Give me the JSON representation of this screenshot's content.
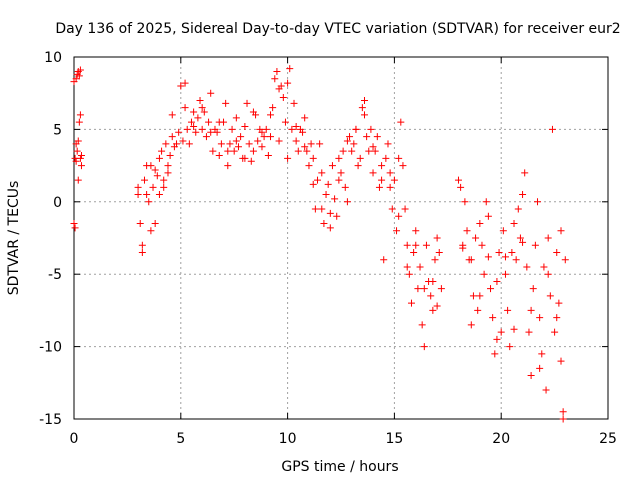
{
  "chart_data": {
    "type": "scatter",
    "title": "Day 136 of 2025, Sidereal Day-to-day VTEC variation (SDTVAR) for receiver eur2",
    "xlabel": "GPS time / hours",
    "ylabel": "SDTVAR / TECUs",
    "xlim": [
      0,
      25
    ],
    "ylim": [
      -15,
      10
    ],
    "x_ticks": [
      0,
      5,
      10,
      15,
      20,
      25
    ],
    "x_tick_labels": [
      "0",
      "5",
      "10",
      "15",
      "20",
      "25"
    ],
    "y_ticks": [
      -15,
      -10,
      -5,
      0,
      5,
      10
    ],
    "y_tick_labels": [
      "-15",
      "-10",
      "-5",
      "0",
      "5",
      "10"
    ],
    "grid": true,
    "marker": "plus",
    "marker_color": "#ff0000",
    "series": [
      {
        "name": "SDTVAR",
        "x": [
          0.0,
          0.05,
          0.1,
          0.15,
          0.2,
          0.25,
          0.3,
          0.05,
          0.1,
          0.15,
          0.2,
          0.25,
          0.3,
          0.35,
          0.0,
          0.1,
          0.2,
          0.3,
          0.35,
          3.0,
          3.1,
          3.2,
          3.3,
          3.4,
          3.5,
          3.6,
          3.7,
          3.8,
          3.9,
          4.0,
          4.1,
          4.2,
          4.3,
          4.4,
          4.5,
          4.6,
          4.7,
          4.8,
          4.9,
          5.0,
          5.1,
          5.2,
          5.3,
          5.4,
          5.5,
          5.6,
          5.7,
          5.8,
          5.9,
          6.0,
          6.1,
          6.2,
          6.3,
          6.4,
          6.5,
          6.6,
          6.7,
          6.8,
          6.9,
          7.0,
          7.1,
          7.2,
          7.3,
          7.4,
          7.5,
          7.6,
          7.7,
          7.8,
          7.9,
          8.0,
          8.1,
          8.2,
          8.3,
          8.4,
          8.5,
          8.6,
          8.7,
          8.8,
          8.9,
          9.0,
          9.1,
          9.2,
          9.3,
          9.4,
          9.5,
          9.6,
          9.7,
          9.8,
          9.9,
          10.0,
          10.1,
          10.2,
          10.3,
          10.4,
          10.5,
          10.6,
          10.7,
          10.8,
          10.9,
          11.0,
          11.1,
          11.2,
          11.3,
          11.4,
          11.5,
          11.6,
          11.7,
          11.8,
          11.9,
          12.0,
          12.1,
          12.2,
          12.3,
          12.4,
          12.5,
          12.6,
          12.7,
          12.8,
          12.9,
          13.0,
          13.1,
          13.2,
          13.3,
          13.4,
          13.5,
          13.6,
          13.7,
          13.8,
          13.9,
          14.0,
          14.1,
          14.2,
          14.3,
          14.4,
          14.5,
          14.6,
          14.7,
          14.8,
          14.9,
          15.0,
          15.1,
          15.2,
          15.3,
          15.4,
          15.5,
          15.6,
          15.7,
          15.8,
          15.9,
          16.0,
          16.1,
          16.2,
          16.3,
          16.4,
          16.5,
          16.6,
          16.7,
          16.8,
          16.9,
          17.0,
          17.1,
          17.2,
          18.0,
          18.1,
          18.2,
          18.3,
          18.4,
          18.5,
          18.6,
          18.7,
          18.8,
          18.9,
          19.0,
          19.1,
          19.2,
          19.3,
          19.4,
          19.5,
          19.6,
          19.7,
          19.8,
          19.9,
          20.0,
          20.1,
          20.2,
          20.3,
          20.4,
          20.5,
          20.6,
          20.7,
          20.8,
          20.9,
          21.0,
          21.1,
          21.2,
          21.3,
          21.4,
          21.5,
          21.6,
          21.7,
          21.8,
          21.9,
          22.0,
          22.1,
          22.2,
          22.3,
          22.4,
          22.5,
          22.6,
          22.7,
          22.8,
          22.9,
          23.0,
          3.0,
          3.2,
          3.4,
          3.6,
          3.8,
          4.0,
          4.2,
          4.4,
          4.6,
          5.2,
          5.6,
          6.0,
          6.4,
          6.8,
          7.2,
          7.6,
          8.0,
          8.4,
          8.8,
          9.2,
          9.6,
          10.0,
          10.4,
          10.8,
          11.2,
          11.6,
          12.0,
          12.4,
          12.8,
          13.2,
          13.6,
          14.0,
          14.4,
          14.8,
          15.2,
          15.6,
          16.0,
          16.4,
          16.8,
          17.0,
          18.2,
          18.6,
          19.0,
          19.4,
          19.8,
          20.2,
          20.6,
          21.0,
          21.4,
          21.8,
          22.2,
          22.6,
          22.8,
          22.9
        ],
        "y": [
          -1.5,
          -1.8,
          8.5,
          8.8,
          9.0,
          8.7,
          9.1,
          3.0,
          2.8,
          3.5,
          4.2,
          5.5,
          3.0,
          2.5,
          8.3,
          4.0,
          1.5,
          6.0,
          3.2,
          0.5,
          -1.5,
          -3.5,
          1.5,
          2.5,
          0.0,
          -2.0,
          1.0,
          2.2,
          1.8,
          0.5,
          3.5,
          1.0,
          4.0,
          2.5,
          3.2,
          4.5,
          3.8,
          4.0,
          4.8,
          8.0,
          4.2,
          6.5,
          5.0,
          4.0,
          5.5,
          6.2,
          4.8,
          5.8,
          7.0,
          5.0,
          6.2,
          4.5,
          5.5,
          7.5,
          3.5,
          5.0,
          4.8,
          3.2,
          4.0,
          5.5,
          6.8,
          2.5,
          4.0,
          5.0,
          3.5,
          4.2,
          3.8,
          4.5,
          3.0,
          5.2,
          6.8,
          4.0,
          2.8,
          3.5,
          6.0,
          4.2,
          5.0,
          3.8,
          4.5,
          5.0,
          3.2,
          4.5,
          6.5,
          8.5,
          9.0,
          4.2,
          8.0,
          7.2,
          5.5,
          3.0,
          9.2,
          5.0,
          6.8,
          4.2,
          3.5,
          5.0,
          4.8,
          5.8,
          3.5,
          2.5,
          4.0,
          3.0,
          -0.5,
          1.5,
          4.0,
          2.0,
          -1.5,
          0.5,
          1.2,
          -0.8,
          2.5,
          0.2,
          -1.0,
          1.5,
          2.0,
          3.5,
          1.0,
          0.0,
          4.5,
          3.5,
          4.0,
          5.0,
          2.5,
          3.0,
          6.5,
          7.0,
          4.5,
          3.5,
          5.0,
          2.0,
          3.5,
          4.5,
          1.0,
          2.5,
          -4.0,
          3.0,
          4.0,
          2.0,
          -0.5,
          1.5,
          -2.0,
          3.0,
          5.5,
          2.5,
          -0.5,
          -3.0,
          -5.0,
          -7.0,
          -3.5,
          -2.0,
          -6.0,
          -4.5,
          -8.5,
          -10.0,
          -3.0,
          -5.5,
          -6.5,
          -7.5,
          -4.0,
          -2.5,
          -3.5,
          -6.0,
          1.5,
          1.0,
          -3.0,
          0.0,
          -2.0,
          -4.0,
          -8.5,
          -6.5,
          -2.5,
          -7.5,
          -1.5,
          -3.0,
          -5.0,
          0.0,
          -1.0,
          -6.0,
          -8.0,
          -10.5,
          -5.5,
          -3.5,
          -9.0,
          -2.0,
          -5.0,
          -7.5,
          -10.0,
          -3.5,
          -1.5,
          -4.0,
          -0.5,
          -2.5,
          0.5,
          2.0,
          -4.5,
          -9.0,
          -12.0,
          -6.0,
          -3.0,
          0.0,
          -8.0,
          -10.5,
          -4.5,
          -13.0,
          -2.5,
          -6.5,
          5.0,
          -9.0,
          -3.5,
          -7.0,
          -11.0,
          -14.5,
          -4.0,
          1.0,
          -3.0,
          0.5,
          2.5,
          -1.5,
          3.0,
          1.5,
          2.0,
          6.0,
          8.2,
          5.2,
          6.5,
          4.8,
          5.5,
          3.5,
          5.8,
          3.0,
          6.2,
          4.8,
          6.0,
          7.8,
          8.2,
          5.2,
          3.8,
          1.2,
          -0.5,
          -1.8,
          3.0,
          4.2,
          5.0,
          6.0,
          3.8,
          1.5,
          1.0,
          -1.0,
          -4.5,
          -3.0,
          -6.0,
          -5.5,
          -7.2,
          -3.2,
          -4.0,
          -6.5,
          -3.8,
          -9.5,
          -3.8,
          -8.8,
          -2.8,
          -7.5,
          -11.5,
          -5.0,
          -8.0,
          -2.0,
          -15.0
        ]
      }
    ]
  }
}
